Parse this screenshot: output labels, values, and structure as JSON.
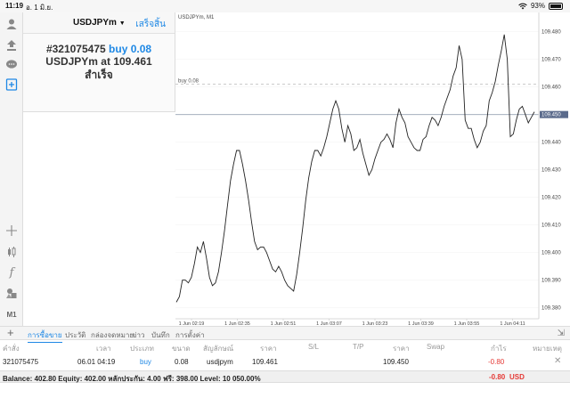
{
  "status_bar": {
    "time": "11:19",
    "date": "อ. 1 มิ.ย.",
    "battery": "93%"
  },
  "toolbar": {
    "icons": [
      "account-icon",
      "trade-icon",
      "chat-icon",
      "new-order-icon",
      "crosshair-icon",
      "candles-icon",
      "indicator-icon",
      "objects-icon"
    ],
    "timeframe": "M1"
  },
  "trade_panel": {
    "symbol": "USDJPYm",
    "done_label": "เสร็จสิ้น",
    "order_number": "#321075475",
    "side_volume": "buy 0.08",
    "line2_prefix": "USDJPYm at",
    "line2_price": "109.461",
    "status": "สำเร็จ"
  },
  "chart": {
    "title": "USDJPYm, M1",
    "buy_line_label": "buy 0.08",
    "current_price": "109.450",
    "price_ticks": [
      "109.480",
      "109.470",
      "109.460",
      "109.450",
      "109.440",
      "109.430",
      "109.420",
      "109.410",
      "109.400",
      "109.390",
      "109.380"
    ],
    "time_ticks": [
      "1 Jun 02:19",
      "1 Jun 02:35",
      "1 Jun 02:51",
      "1 Jun 03:07",
      "1 Jun 03:23",
      "1 Jun 03:39",
      "1 Jun 03:55",
      "1 Jun 04:11"
    ]
  },
  "chart_data": {
    "type": "line",
    "title": "USDJPYm, M1",
    "ylim": [
      109.376,
      109.487
    ],
    "y": [
      109.382,
      109.384,
      109.39,
      109.39,
      109.389,
      109.391,
      109.396,
      109.402,
      109.4,
      109.404,
      109.398,
      109.391,
      109.388,
      109.389,
      109.393,
      109.4,
      109.408,
      109.417,
      109.426,
      109.432,
      109.437,
      109.437,
      109.432,
      109.426,
      109.419,
      109.411,
      109.404,
      109.401,
      109.402,
      109.402,
      109.4,
      109.397,
      109.394,
      109.393,
      109.395,
      109.393,
      109.39,
      109.388,
      109.387,
      109.386,
      109.392,
      109.4,
      109.409,
      109.419,
      109.427,
      109.433,
      109.437,
      109.437,
      109.435,
      109.438,
      109.442,
      109.447,
      109.452,
      109.455,
      109.452,
      109.445,
      109.44,
      109.446,
      109.443,
      109.437,
      109.438,
      109.441,
      109.436,
      109.432,
      109.428,
      109.43,
      109.434,
      109.437,
      109.44,
      109.441,
      109.443,
      109.441,
      109.438,
      109.447,
      109.452,
      109.449,
      109.447,
      109.442,
      109.44,
      109.438,
      109.437,
      109.437,
      109.441,
      109.442,
      109.446,
      109.449,
      109.448,
      109.446,
      109.449,
      109.453,
      109.456,
      109.459,
      109.464,
      109.467,
      109.475,
      109.47,
      109.448,
      109.445,
      109.445,
      109.441,
      109.438,
      109.44,
      109.444,
      109.446,
      109.455,
      109.458,
      109.462,
      109.468,
      109.473,
      109.479,
      109.47,
      109.442,
      109.443,
      109.448,
      109.452,
      109.453,
      109.45,
      109.447,
      109.449,
      109.451
    ],
    "buy_level": 109.461,
    "current_level": 109.45
  },
  "bottom_tabs": {
    "tabs": [
      "การซื้อขาย",
      "ประวัติ",
      "กล่องจดหมาย",
      "ข่าว",
      "บันทึก",
      "การตั้งค่า"
    ],
    "active": 0
  },
  "table": {
    "headers": [
      "คำสั่ง",
      "เวลา",
      "ประเภท",
      "ขนาด",
      "สัญลักษณ์",
      "ราคา",
      "S/L",
      "T/P",
      "ราคา",
      "Swap",
      "กำไร",
      "หมายเหตุ"
    ],
    "row": {
      "order": "321075475",
      "time": "06.01 04:19",
      "type": "buy",
      "size": "0.08",
      "symbol": "usdjpym",
      "price": "109.461",
      "current_price": "109.450",
      "profit": "-0.80"
    }
  },
  "footer": {
    "summary": "Balance: 402.80 Equity: 402.00 หลักประกัน: 4.00 ฟรี: 398.00 Level: 10 050.00%",
    "total": "-0.80",
    "currency": "USD"
  }
}
